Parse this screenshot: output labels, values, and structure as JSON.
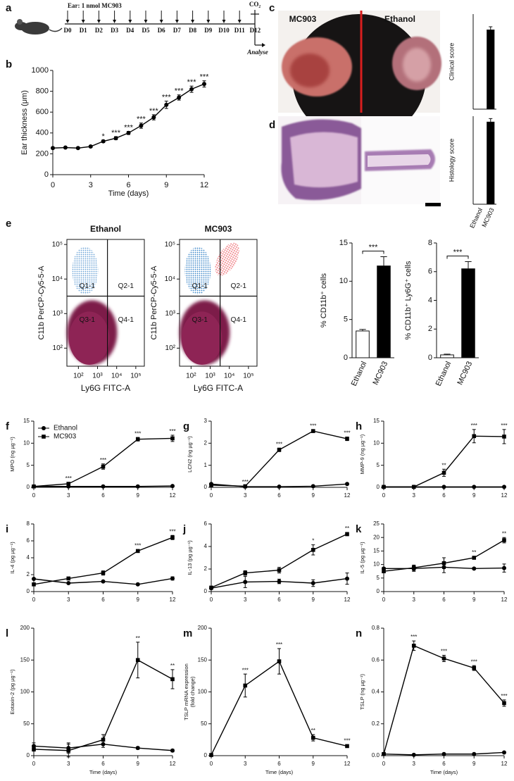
{
  "timeline": {
    "panel": "a",
    "treatment": "Ear: 1 nmol MC903",
    "days": [
      "D0",
      "D1",
      "D2",
      "D3",
      "D4",
      "D5",
      "D6",
      "D7",
      "D8",
      "D9",
      "D10",
      "D11",
      "D12"
    ],
    "end_label": "CO₂",
    "analysis": "Analyse"
  },
  "photo": {
    "panel": "c",
    "labels": [
      "MC903",
      "Ethanol"
    ]
  },
  "histology": {
    "panel": "d"
  },
  "chart_data": [
    {
      "type": "line",
      "panel": "b",
      "xlabel": "Time (days)",
      "ylabel": "Ear thickness (μm)",
      "x": [
        0,
        1,
        2,
        3,
        4,
        5,
        6,
        7,
        8,
        9,
        10,
        11,
        12
      ],
      "values": [
        255,
        260,
        255,
        270,
        320,
        350,
        400,
        470,
        550,
        670,
        740,
        820,
        870
      ],
      "errors": [
        8,
        8,
        8,
        10,
        12,
        15,
        15,
        25,
        25,
        35,
        25,
        30,
        30
      ],
      "significance": [
        null,
        null,
        null,
        null,
        "*",
        "***",
        "***",
        "***",
        "***",
        "***",
        "***",
        "***",
        "***"
      ],
      "color": "#000000",
      "marker": "circle",
      "xlim": [
        0,
        12
      ],
      "ylim": [
        0,
        1000
      ],
      "xticks": [
        0,
        3,
        6,
        9,
        12
      ],
      "yticks": [
        0,
        200,
        400,
        600,
        800,
        1000
      ]
    },
    {
      "type": "bar",
      "ylabel": "Clinical score",
      "values": [
        0,
        2.5
      ],
      "errors": [
        0,
        0.1
      ],
      "colors": [
        "#ffffff",
        "#000000"
      ],
      "ylim": [
        0,
        3
      ]
    },
    {
      "type": "bar",
      "ylabel": "Histology score",
      "categories": [
        "Ethanol",
        "MC903"
      ],
      "values": [
        0,
        2.8
      ],
      "errors": [
        0,
        0.12
      ],
      "colors": [
        "#ffffff",
        "#000000"
      ],
      "ylim": [
        0,
        3
      ]
    },
    {
      "type": "flow",
      "panel": "e",
      "title": "Ethanol",
      "xlabel": "Ly6G FITC-A",
      "ylabel": "C11b PerCP-Cy5-5-A",
      "log": true,
      "xlim": [
        25,
        280000
      ],
      "ylim": [
        30,
        140000
      ],
      "xticks": [
        {
          "value": 100,
          "label": "10²"
        },
        {
          "value": 1000,
          "label": "10³"
        },
        {
          "value": 10000,
          "label": "10⁴"
        },
        {
          "value": 100000,
          "label": "10⁵"
        }
      ],
      "yticks": [
        {
          "value": 100,
          "label": "10²"
        },
        {
          "value": 1000,
          "label": "10³"
        },
        {
          "value": 10000,
          "label": "10⁴"
        },
        {
          "value": 100000,
          "label": "10⁵"
        }
      ],
      "gates": {
        "x": 3300,
        "y": 3200
      },
      "quadrants": [
        "Q1-1",
        "Q2-1",
        "Q3-1",
        "Q4-1"
      ]
    },
    {
      "type": "flow",
      "title": "MC903",
      "xlabel": "Ly6G FITC-A",
      "ylabel": "C11b PerCP-Cy5-5-A",
      "log": true,
      "xlim": [
        25,
        280000
      ],
      "ylim": [
        30,
        140000
      ],
      "xticks": [
        {
          "value": 100,
          "label": "10²"
        },
        {
          "value": 1000,
          "label": "10³"
        },
        {
          "value": 10000,
          "label": "10⁴"
        },
        {
          "value": 100000,
          "label": "10⁵"
        }
      ],
      "yticks": [
        {
          "value": 100,
          "label": "10²"
        },
        {
          "value": 1000,
          "label": "10³"
        },
        {
          "value": 10000,
          "label": "10⁴"
        },
        {
          "value": 100000,
          "label": "10⁵"
        }
      ],
      "gates": {
        "x": 3300,
        "y": 3200
      },
      "quadrants": [
        "Q1-1",
        "Q2-1",
        "Q3-1",
        "Q4-1"
      ]
    },
    {
      "type": "bar",
      "ylabel": "% CD11b⁺ cells",
      "categories": [
        "Ethanol",
        "MC903"
      ],
      "values": [
        3.5,
        12
      ],
      "errors": [
        0.2,
        1.2
      ],
      "colors": [
        "#ffffff",
        "#000000"
      ],
      "ylim": [
        0,
        15
      ],
      "yticks": [
        0,
        5,
        10,
        15
      ],
      "significance": "***"
    },
    {
      "type": "bar",
      "ylabel": "% CD11b⁺ Ly6G⁺ cells",
      "categories": [
        "Ethanol",
        "MC903"
      ],
      "values": [
        0.2,
        6.2
      ],
      "errors": [
        0.05,
        0.5
      ],
      "colors": [
        "#ffffff",
        "#000000"
      ],
      "ylim": [
        0,
        8
      ],
      "yticks": [
        0,
        2,
        4,
        6,
        8
      ],
      "significance": "***"
    },
    {
      "type": "line",
      "panel": "f",
      "ylabel": "MPO (ng µg⁻¹)",
      "x": [
        0,
        3,
        6,
        9,
        12
      ],
      "legend": "upper left",
      "series": [
        {
          "name": "Ethanol",
          "color": "#000000",
          "marker": "circle",
          "values": [
            0.2,
            0.2,
            0.2,
            0.2,
            0.3
          ]
        },
        {
          "name": "MC903",
          "color": "#000000",
          "marker": "square",
          "values": [
            0.2,
            0.8,
            4.7,
            10.9,
            11.1
          ],
          "errors": [
            0.1,
            0.3,
            0.6,
            0.4,
            0.7
          ],
          "significance": [
            null,
            "***",
            "***",
            "***",
            "***"
          ]
        }
      ],
      "xlim": [
        0,
        12
      ],
      "ylim": [
        0,
        15
      ],
      "xticks": [
        0,
        3,
        6,
        9,
        12
      ],
      "yticks": [
        0,
        5,
        10,
        15
      ]
    },
    {
      "type": "line",
      "panel": "g",
      "ylabel": "LCN2 (ng µg⁻¹)",
      "x": [
        0,
        3,
        6,
        9,
        12
      ],
      "series": [
        {
          "name": "Ethanol",
          "color": "#000000",
          "marker": "circle",
          "values": [
            0.15,
            0.03,
            0.03,
            0.05,
            0.15
          ]
        },
        {
          "name": "MC903",
          "color": "#000000",
          "marker": "square",
          "values": [
            0.1,
            0.05,
            1.7,
            2.55,
            2.2
          ],
          "errors": [
            0.02,
            0.02,
            0.08,
            0.06,
            0.08
          ],
          "significance": [
            null,
            "***",
            "***",
            "***",
            "***"
          ]
        }
      ],
      "xlim": [
        0,
        12
      ],
      "ylim": [
        0,
        3
      ],
      "xticks": [
        0,
        3,
        6,
        9,
        12
      ],
      "yticks": [
        0,
        1,
        2,
        3
      ]
    },
    {
      "type": "line",
      "panel": "h",
      "ylabel": "MMP-9 (ng µg⁻¹)",
      "x": [
        0,
        3,
        6,
        9,
        12
      ],
      "series": [
        {
          "name": "Ethanol",
          "color": "#000000",
          "marker": "circle",
          "values": [
            0.1,
            0.1,
            0.1,
            0.1,
            0.1
          ]
        },
        {
          "name": "MC903",
          "color": "#000000",
          "marker": "square",
          "values": [
            0.1,
            0.1,
            3.3,
            11.6,
            11.5
          ],
          "errors": [
            0,
            0,
            0.8,
            1.5,
            1.6
          ],
          "significance": [
            null,
            null,
            "**",
            "***",
            "***"
          ]
        }
      ],
      "xlim": [
        0,
        12
      ],
      "ylim": [
        0,
        15
      ],
      "xticks": [
        0,
        3,
        6,
        9,
        12
      ],
      "yticks": [
        0,
        5,
        10,
        15
      ]
    },
    {
      "type": "line",
      "panel": "i",
      "ylabel": "IL-4 (pg µg⁻¹)",
      "x": [
        0,
        3,
        6,
        9,
        12
      ],
      "series": [
        {
          "name": "Ethanol",
          "color": "#000000",
          "marker": "circle",
          "values": [
            1.5,
            1.0,
            1.2,
            0.85,
            1.55
          ],
          "errors": [
            0.05,
            0.05,
            0.05,
            0.05,
            0.2
          ]
        },
        {
          "name": "MC903",
          "color": "#000000",
          "marker": "square",
          "values": [
            0.85,
            1.55,
            2.2,
            4.8,
            6.4
          ],
          "errors": [
            0.05,
            0.05,
            0.25,
            0.15,
            0.25
          ],
          "significance": [
            null,
            null,
            null,
            "***",
            "***"
          ]
        }
      ],
      "xlim": [
        0,
        12
      ],
      "ylim": [
        0,
        8
      ],
      "xticks": [
        0,
        3,
        6,
        9,
        12
      ],
      "yticks": [
        0,
        2,
        4,
        6,
        8
      ]
    },
    {
      "type": "line",
      "panel": "j",
      "ylabel": "IL-13 (pg µg⁻¹)",
      "x": [
        0,
        3,
        6,
        9,
        12
      ],
      "series": [
        {
          "name": "Ethanol",
          "color": "#000000",
          "marker": "circle",
          "values": [
            0.3,
            0.85,
            0.9,
            0.75,
            1.15
          ],
          "errors": [
            0.05,
            0.5,
            0.2,
            0.3,
            0.5
          ]
        },
        {
          "name": "MC903",
          "color": "#000000",
          "marker": "square",
          "values": [
            0.35,
            1.65,
            1.9,
            3.7,
            5.1
          ],
          "errors": [
            0.05,
            0.2,
            0.25,
            0.45,
            0.15
          ],
          "significance": [
            null,
            null,
            null,
            "*",
            "**"
          ]
        }
      ],
      "xlim": [
        0,
        12
      ],
      "ylim": [
        0,
        6
      ],
      "xticks": [
        0,
        3,
        6,
        9,
        12
      ],
      "yticks": [
        0,
        2,
        4,
        6
      ]
    },
    {
      "type": "line",
      "panel": "k",
      "ylabel": "IL-5 (pg µg⁻¹)",
      "x": [
        0,
        3,
        6,
        9,
        12
      ],
      "series": [
        {
          "name": "Ethanol",
          "color": "#000000",
          "marker": "circle",
          "values": [
            8.5,
            8.5,
            9.0,
            8.5,
            8.7
          ],
          "errors": [
            0.5,
            1,
            2,
            0.3,
            1.5
          ]
        },
        {
          "name": "MC903",
          "color": "#000000",
          "marker": "square",
          "values": [
            7.5,
            8.8,
            10.5,
            12.5,
            19
          ],
          "errors": [
            0.5,
            1,
            2,
            0.5,
            1
          ],
          "significance": [
            null,
            null,
            null,
            "**",
            "**"
          ]
        }
      ],
      "xlim": [
        0,
        12
      ],
      "ylim": [
        0,
        25
      ],
      "xticks": [
        0,
        3,
        6,
        9,
        12
      ],
      "yticks": [
        0,
        5,
        10,
        15,
        20,
        25
      ]
    },
    {
      "type": "line",
      "panel": "l",
      "xlabel": "Time (days)",
      "ylabel": "Eotaxin-2 (pg µg⁻¹)",
      "x": [
        0,
        3,
        6,
        9,
        12
      ],
      "series": [
        {
          "name": "Ethanol",
          "color": "#000000",
          "marker": "circle",
          "values": [
            15,
            12,
            18,
            12,
            8
          ],
          "errors": [
            5,
            8,
            5,
            2,
            2
          ]
        },
        {
          "name": "MC903",
          "color": "#000000",
          "marker": "square",
          "values": [
            10,
            8,
            25,
            150,
            120
          ],
          "errors": [
            3,
            10,
            8,
            28,
            15
          ],
          "significance": [
            null,
            null,
            null,
            "**",
            "**"
          ]
        }
      ],
      "xlim": [
        0,
        12
      ],
      "ylim": [
        0,
        200
      ],
      "xticks": [
        0,
        3,
        6,
        9,
        12
      ],
      "yticks": [
        0,
        50,
        100,
        150,
        200
      ]
    },
    {
      "type": "line",
      "panel": "m",
      "xlabel": "Time (days)",
      "ylabel": [
        "TSLP mRNA expression",
        "(fold change)"
      ],
      "x": [
        0,
        3,
        6,
        9,
        12
      ],
      "values": [
        1,
        110,
        148,
        28,
        15
      ],
      "errors": [
        2,
        18,
        20,
        5,
        2
      ],
      "significance": [
        null,
        "***",
        "***",
        "**",
        "***"
      ],
      "color": "#000000",
      "marker": "square",
      "xlim": [
        0,
        12
      ],
      "ylim": [
        0,
        200
      ],
      "xticks": [
        0,
        3,
        6,
        9,
        12
      ],
      "yticks": [
        0,
        50,
        100,
        150,
        200
      ]
    },
    {
      "type": "line",
      "panel": "n",
      "xlabel": "Time (days)",
      "ylabel": "TSLP (ng µg⁻¹)",
      "x": [
        0,
        3,
        6,
        9,
        12
      ],
      "series": [
        {
          "name": "Ethanol",
          "color": "#000000",
          "marker": "circle",
          "values": [
            0.01,
            0.005,
            0.01,
            0.01,
            0.02
          ]
        },
        {
          "name": "MC903",
          "color": "#000000",
          "marker": "square",
          "values": [
            0.01,
            0.69,
            0.61,
            0.55,
            0.33
          ],
          "errors": [
            0.005,
            0.03,
            0.02,
            0.015,
            0.02
          ],
          "significance": [
            null,
            "***",
            "***",
            "***",
            "***"
          ]
        }
      ],
      "xlim": [
        0,
        12
      ],
      "ylim": [
        0,
        0.8
      ],
      "xticks": [
        0,
        3,
        6,
        9,
        12
      ],
      "yticks": [
        {
          "value": 0,
          "label": "0.0"
        },
        0.2,
        0.4,
        0.6,
        0.8
      ]
    }
  ]
}
